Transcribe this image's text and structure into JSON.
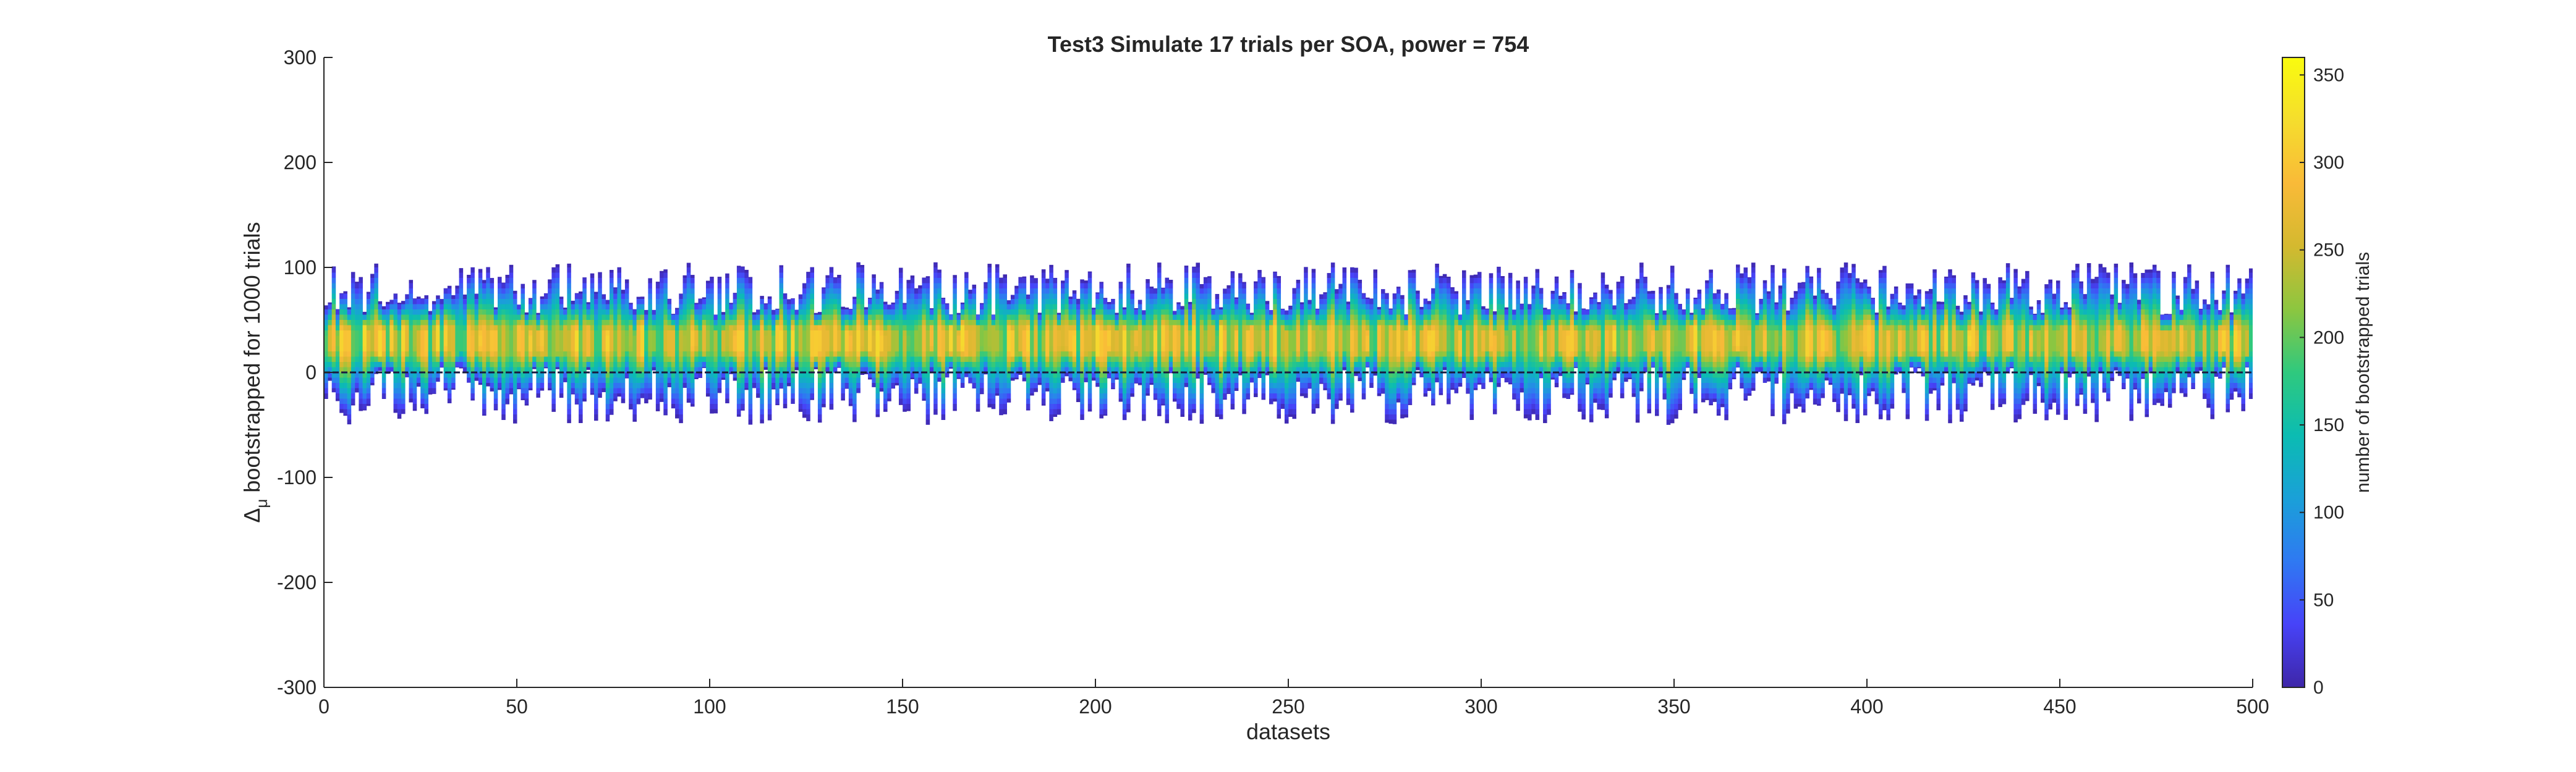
{
  "chart_data": {
    "type": "heatmap",
    "title": "Test3 Simulate 17 trials per SOA, power = 754",
    "xlabel": "datasets",
    "ylabel": "bootstrapped for 1000 trials",
    "ylabel_symbol": "Δ",
    "ylabel_subscript": "μ",
    "xlim": [
      0,
      500
    ],
    "ylim": [
      -300,
      300
    ],
    "xticks": [
      0,
      50,
      100,
      150,
      200,
      250,
      300,
      350,
      400,
      450,
      500
    ],
    "yticks": [
      -300,
      -200,
      -100,
      0,
      100,
      200,
      300
    ],
    "grid": false,
    "n_datasets": 500,
    "zero_line": 0,
    "typical_range": {
      "low_min": -50,
      "low_max": 5,
      "high_min": 55,
      "high_max": 105,
      "mode_low": 20,
      "mode_high": 40
    },
    "colorbar": {
      "label": "number of bootstrapped trials",
      "clim": [
        0,
        360
      ],
      "ticks": [
        0,
        50,
        100,
        150,
        200,
        250,
        300,
        350
      ],
      "colormap": "parula",
      "colors": [
        "#3e26a8",
        "#4743f8",
        "#2f79f2",
        "#1aa0d8",
        "#0bbcb2",
        "#2fc97e",
        "#8cc640",
        "#d4b92f",
        "#f9ba38",
        "#f5dd2d",
        "#f9fb0e"
      ]
    },
    "axis_color": "#262626",
    "background": "#ffffff"
  }
}
